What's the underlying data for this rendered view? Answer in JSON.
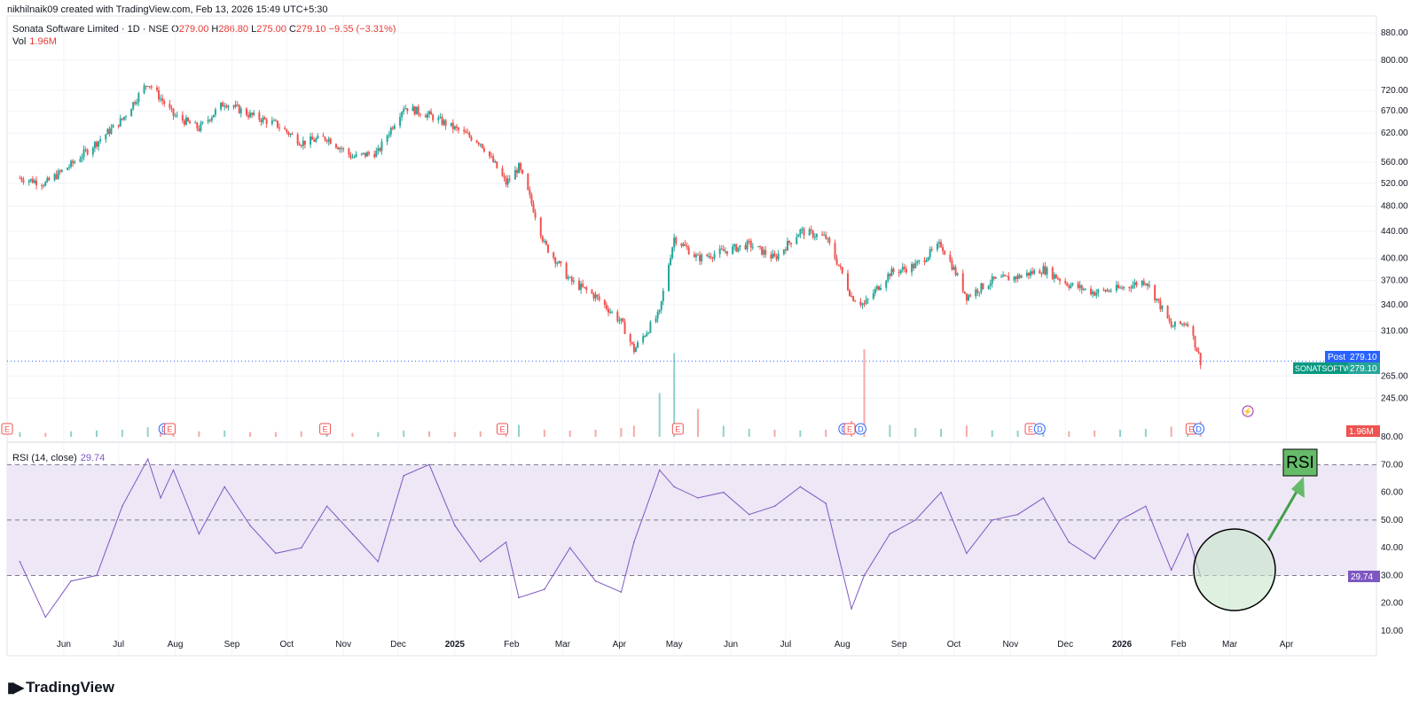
{
  "header": {
    "creator": "nikhilnaik09 created with TradingView.com, Feb 13, 2026 15:49 UTC+5:30",
    "symbol": "Sonata Software Limited · 1D · NSE",
    "o_label": "O",
    "o_value": "279.00",
    "h_label": "H",
    "h_value": "286.80",
    "l_label": "L",
    "l_value": "275.00",
    "c_label": "C",
    "c_value": "279.10",
    "change": "−9.55 (−3.31%)",
    "vol_label": "Vol",
    "vol_value": "1.96M",
    "rsi_label": "RSI (14, close)",
    "rsi_value": "29.74"
  },
  "brand": {
    "name": "TradingView"
  },
  "badges": {
    "post_label": "Post",
    "post_value": "279.10",
    "symbol_label": "SONATSOFTW",
    "symbol_value": "279.10",
    "vol_value": "1.96M",
    "rsi_value": "29.74",
    "rsi_annotation": "RSI"
  },
  "colors": {
    "up": "#26a69a",
    "down": "#ef5350",
    "rsi": "#7e57c2",
    "rsi_band": "#ede7f6",
    "accent": "#2962ff"
  },
  "chart_data": [
    {
      "type": "candlestick",
      "title": "Sonata Software Limited · 1D · NSE",
      "y_scale": "log",
      "y_ticks": [
        880,
        800,
        720,
        670,
        620,
        560,
        520,
        480,
        440,
        400,
        370,
        340,
        310,
        265,
        245
      ],
      "y_tick_labels": [
        "880.00",
        "800.00",
        "720.00",
        "670.00",
        "620.00",
        "560.00",
        "520.00",
        "480.00",
        "440.00",
        "400.00",
        "370.00",
        "340.00",
        "310.00",
        "265.00",
        "245.00"
      ],
      "x_tick_labels": [
        "Jun",
        "Jul",
        "Aug",
        "Sep",
        "Oct",
        "Nov",
        "Dec",
        "2025",
        "Feb",
        "Mar",
        "Apr",
        "May",
        "Jun",
        "Jul",
        "Aug",
        "Sep",
        "Oct",
        "Nov",
        "Dec",
        "2026",
        "Feb",
        "Mar",
        "Apr"
      ],
      "x": [
        "2024-05-08",
        "2024-05-22",
        "2024-06-05",
        "2024-06-19",
        "2024-07-03",
        "2024-07-17",
        "2024-07-24",
        "2024-07-31",
        "2024-08-14",
        "2024-08-28",
        "2024-09-11",
        "2024-09-25",
        "2024-10-09",
        "2024-10-23",
        "2024-11-06",
        "2024-11-20",
        "2024-12-04",
        "2024-12-18",
        "2025-01-01",
        "2025-01-15",
        "2025-01-29",
        "2025-02-05",
        "2025-02-19",
        "2025-03-05",
        "2025-03-19",
        "2025-04-02",
        "2025-04-09",
        "2025-04-23",
        "2025-05-01",
        "2025-05-14",
        "2025-05-28",
        "2025-06-11",
        "2025-06-25",
        "2025-07-09",
        "2025-07-23",
        "2025-08-06",
        "2025-08-13",
        "2025-08-27",
        "2025-09-10",
        "2025-09-24",
        "2025-10-08",
        "2025-10-22",
        "2025-11-05",
        "2025-11-19",
        "2025-12-03",
        "2025-12-17",
        "2025-12-31",
        "2026-01-14",
        "2026-01-28",
        "2026-02-06",
        "2026-02-13"
      ],
      "close": [
        530,
        520,
        555,
        600,
        650,
        740,
        700,
        660,
        630,
        690,
        660,
        640,
        600,
        610,
        570,
        580,
        680,
        660,
        630,
        600,
        520,
        550,
        420,
        370,
        350,
        320,
        290,
        330,
        430,
        400,
        410,
        420,
        400,
        440,
        430,
        350,
        340,
        380,
        390,
        420,
        350,
        370,
        375,
        385,
        365,
        355,
        360,
        370,
        315,
        320,
        279.1
      ]
    },
    {
      "type": "bar",
      "series": [
        {
          "name": "Vol",
          "values": [
            0.6,
            0.5,
            0.7,
            0.8,
            0.9,
            1.2,
            1.5,
            1.0,
            0.7,
            0.8,
            0.6,
            0.6,
            0.7,
            0.6,
            0.5,
            0.6,
            0.8,
            0.7,
            0.6,
            0.7,
            1.2,
            1.5,
            0.9,
            0.8,
            0.9,
            1.1,
            1.4,
            5.5,
            10.5,
            3.5,
            1.4,
            1.0,
            0.9,
            0.8,
            0.9,
            2.0,
            11.0,
            1.5,
            1.1,
            1.0,
            1.4,
            0.8,
            0.8,
            0.9,
            0.7,
            0.8,
            0.9,
            1.0,
            1.3,
            1.5,
            1.96
          ]
        }
      ],
      "last_value_label": "1.96M"
    },
    {
      "type": "line",
      "title": "RSI (14, close)",
      "ylim": [
        10,
        80
      ],
      "y_ticks": [
        80,
        70,
        60,
        50,
        40,
        30,
        20,
        10
      ],
      "y_tick_labels": [
        "80.00",
        "70.00",
        "60.00",
        "50.00",
        "40.00",
        "30.00",
        "20.00",
        "10.00"
      ],
      "reference_lines": [
        70,
        50,
        30
      ],
      "series": [
        {
          "name": "RSI",
          "values": [
            35,
            15,
            28,
            30,
            55,
            72,
            58,
            68,
            45,
            62,
            48,
            38,
            40,
            55,
            45,
            35,
            66,
            70,
            48,
            35,
            42,
            22,
            25,
            40,
            28,
            24,
            42,
            68,
            62,
            58,
            60,
            52,
            55,
            62,
            56,
            18,
            30,
            45,
            50,
            60,
            38,
            50,
            52,
            58,
            42,
            36,
            50,
            55,
            32,
            45,
            29.74
          ]
        }
      ],
      "last_value_label": "29.74"
    }
  ]
}
